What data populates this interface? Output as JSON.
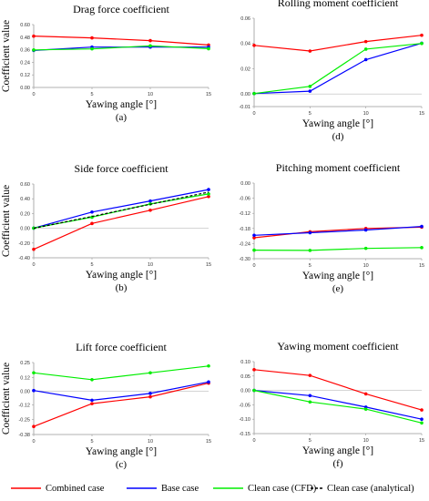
{
  "chart_data": [
    {
      "type": "line",
      "title": "Drag force coefficient",
      "xlabel": "Yawing angle [°]",
      "ylabel": "Coefficient value",
      "panel_label": "(a)",
      "x": [
        0,
        5,
        10,
        15
      ],
      "xticks": [
        0,
        5,
        10,
        15
      ],
      "ylim": [
        0,
        0.6
      ],
      "yticks": [
        0,
        0.12,
        0.24,
        0.36,
        0.48,
        0.6
      ],
      "ytick_labels": [
        "0.00",
        "0.12",
        "0.24",
        "0.36",
        "0.48",
        "0.60"
      ],
      "grid": false,
      "series": [
        {
          "name": "Combined case",
          "color": "#ff0000",
          "values": [
            0.49,
            0.473,
            0.447,
            0.405
          ]
        },
        {
          "name": "Base case",
          "color": "#0000ff",
          "values": [
            0.353,
            0.385,
            0.385,
            0.385
          ]
        },
        {
          "name": "Clean case (CFD)",
          "color": "#00ee00",
          "values": [
            0.358,
            0.368,
            0.397,
            0.37
          ]
        }
      ]
    },
    {
      "type": "line",
      "title": "Rolling moment coefficient",
      "xlabel": "Yawing angle [°]",
      "ylabel": "",
      "panel_label": "(d)",
      "x": [
        0,
        5,
        10,
        15
      ],
      "xticks": [
        0,
        5,
        10,
        15
      ],
      "ylim": [
        -0.01,
        0.06
      ],
      "yticks": [
        -0.01,
        0,
        0.02,
        0.04,
        0.06
      ],
      "ytick_labels": [
        "-0.01",
        "0.00",
        "0.02",
        "0.04",
        "0.06"
      ],
      "grid": false,
      "series": [
        {
          "name": "Combined case",
          "color": "#ff0000",
          "values": [
            0.0385,
            0.034,
            0.0415,
            0.0465
          ]
        },
        {
          "name": "Base case",
          "color": "#0000ff",
          "values": [
            0.0003,
            0.0022,
            0.0272,
            0.0402
          ]
        },
        {
          "name": "Clean case (CFD)",
          "color": "#00ee00",
          "values": [
            0.0003,
            0.006,
            0.0355,
            0.04
          ]
        }
      ]
    },
    {
      "type": "line",
      "title": "Side force coefficient",
      "xlabel": "Yawing angle [°]",
      "ylabel": "Coefficient value",
      "panel_label": "(b)",
      "x": [
        0,
        5,
        10,
        15
      ],
      "xticks": [
        0,
        5,
        10,
        15
      ],
      "ylim": [
        -0.4,
        0.6
      ],
      "yticks": [
        -0.4,
        -0.2,
        0,
        0.2,
        0.4,
        0.6
      ],
      "ytick_labels": [
        "-0.40",
        "-0.20",
        "0.00",
        "0.20",
        "0.40",
        "0.60"
      ],
      "grid": false,
      "series": [
        {
          "name": "Combined case",
          "color": "#ff0000",
          "values": [
            -0.285,
            0.065,
            0.245,
            0.43
          ]
        },
        {
          "name": "Base case",
          "color": "#0000ff",
          "values": [
            0.002,
            0.22,
            0.37,
            0.525
          ]
        },
        {
          "name": "Clean case (CFD)",
          "color": "#00ee00",
          "values": [
            0.002,
            0.15,
            0.33,
            0.465
          ]
        },
        {
          "name": "Clean case (analytical)",
          "color": "#000000",
          "dashed": true,
          "values": [
            0.0,
            0.16,
            0.325,
            0.49
          ]
        }
      ]
    },
    {
      "type": "line",
      "title": "Pitching moment coefficient",
      "xlabel": "Yawing angle [°]",
      "ylabel": "",
      "panel_label": "(e)",
      "x": [
        0,
        5,
        10,
        15
      ],
      "xticks": [
        0,
        5,
        10,
        15
      ],
      "ylim": [
        -0.3,
        0
      ],
      "yticks": [
        -0.3,
        -0.24,
        -0.18,
        -0.12,
        -0.06,
        0
      ],
      "ytick_labels": [
        "-0.30",
        "-0.24",
        "-0.18",
        "-0.12",
        "-0.06",
        "0.00"
      ],
      "grid": false,
      "series": [
        {
          "name": "Combined case",
          "color": "#ff0000",
          "values": [
            -0.217,
            -0.193,
            -0.18,
            -0.175
          ]
        },
        {
          "name": "Base case",
          "color": "#0000ff",
          "values": [
            -0.207,
            -0.197,
            -0.186,
            -0.172
          ]
        },
        {
          "name": "Clean case (CFD)",
          "color": "#00ee00",
          "values": [
            -0.266,
            -0.267,
            -0.259,
            -0.256
          ]
        }
      ]
    },
    {
      "type": "line",
      "title": "Lift force coefficient",
      "xlabel": "Yawing angle [°]",
      "ylabel": "Coefficient value",
      "panel_label": "(c)",
      "x": [
        0,
        5,
        10,
        15
      ],
      "xticks": [
        0,
        5,
        10,
        15
      ],
      "ylim": [
        -0.38,
        0.25
      ],
      "yticks": [
        -0.38,
        -0.25,
        -0.12,
        0,
        0.12,
        0.25
      ],
      "ytick_labels": [
        "-0.38",
        "-0.25",
        "-0.12",
        "0.00",
        "0.12",
        "0.25"
      ],
      "grid": false,
      "series": [
        {
          "name": "Combined case",
          "color": "#ff0000",
          "values": [
            -0.31,
            -0.11,
            -0.05,
            0.07
          ]
        },
        {
          "name": "Base case",
          "color": "#0000ff",
          "values": [
            0.005,
            -0.08,
            -0.02,
            0.08
          ]
        },
        {
          "name": "Clean case (CFD)",
          "color": "#00ee00",
          "values": [
            0.16,
            0.1,
            0.16,
            0.22
          ]
        }
      ]
    },
    {
      "type": "line",
      "title": "Yawing moment coefficient",
      "xlabel": "Yawing angle [°]",
      "ylabel": "",
      "panel_label": "(f)",
      "x": [
        0,
        5,
        10,
        15
      ],
      "xticks": [
        0,
        5,
        10,
        15
      ],
      "ylim": [
        -0.15,
        0.1
      ],
      "yticks": [
        -0.15,
        -0.1,
        -0.05,
        0,
        0.05,
        0.1
      ],
      "ytick_labels": [
        "-0.15",
        "-0.10",
        "-0.05",
        "0.00",
        "0.05",
        "0.10"
      ],
      "grid": false,
      "series": [
        {
          "name": "Combined case",
          "color": "#ff0000",
          "values": [
            0.072,
            0.052,
            -0.012,
            -0.068
          ]
        },
        {
          "name": "Base case",
          "color": "#0000ff",
          "values": [
            0.0,
            -0.018,
            -0.058,
            -0.1
          ]
        },
        {
          "name": "Clean case (CFD)",
          "color": "#00ee00",
          "values": [
            0.0,
            -0.04,
            -0.065,
            -0.113
          ]
        }
      ]
    }
  ],
  "legend": {
    "placement": "bottom",
    "items": [
      {
        "label": "Combined case",
        "color": "#ff0000",
        "style": "solid"
      },
      {
        "label": "Base case",
        "color": "#0000ff",
        "style": "solid"
      },
      {
        "label": "Clean case (CFD)",
        "color": "#00ee00",
        "style": "solid"
      },
      {
        "label": "Clean case (analytical)",
        "color": "#000000",
        "style": "dashed"
      }
    ]
  }
}
